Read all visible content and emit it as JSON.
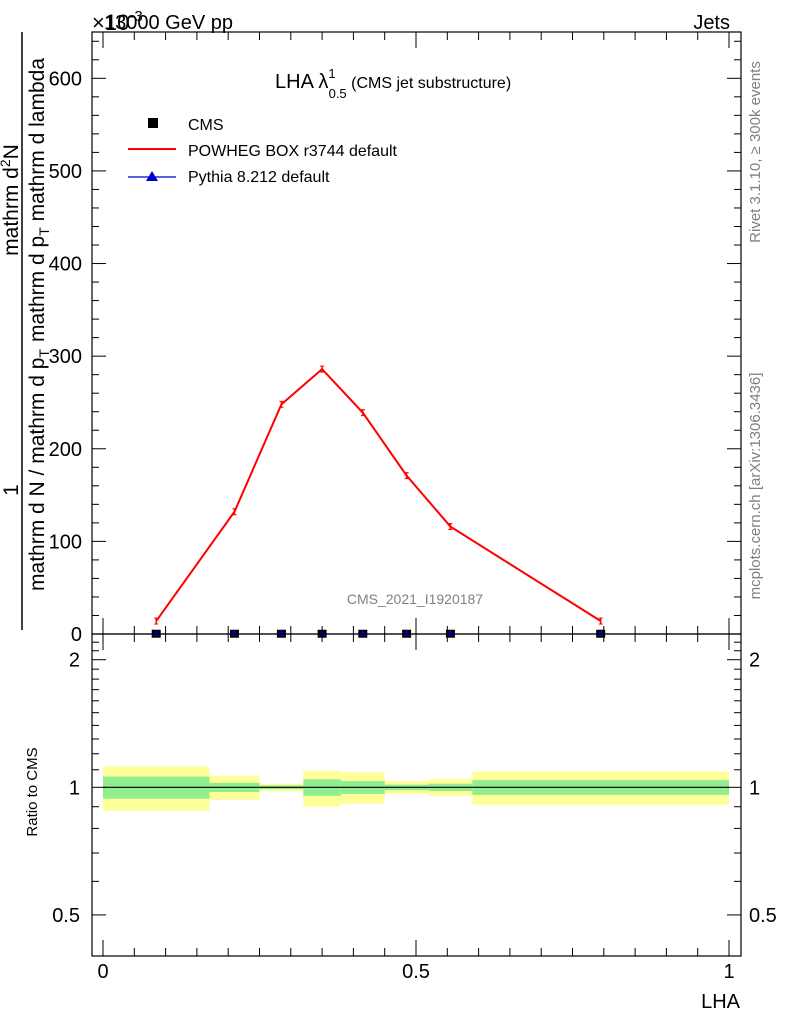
{
  "header": {
    "left": "13000 GeV pp",
    "right": "Jets",
    "exponent_label": "×10",
    "exponent_power": "-3"
  },
  "side_labels": {
    "rivet": "Rivet 3.1.10, ≥ 300k events",
    "mcplots": "mcplots.cern.ch [arXiv:1306.3436]"
  },
  "plot_title": {
    "main": "LHA λ",
    "sup": "1",
    "sub": "0.5",
    "suffix": " (CMS jet substructure)"
  },
  "watermark": "CMS_2021_I1920187",
  "ylabel_main": {
    "numerator": "1",
    "denominator": "mathrm d N / mathrm d p",
    "den_sub": "T",
    "right_num": "mathrm d",
    "right_num_sup": "2",
    "right_num_tail": "N",
    "right_den": "mathrm d p",
    "right_den_sub": "T",
    "right_den_tail": " mathrm d lambda"
  },
  "ylabel_ratio": "Ratio to CMS",
  "xlabel": "LHA",
  "legend": [
    {
      "label": "CMS",
      "marker": "square",
      "color": "#000000"
    },
    {
      "label": "POWHEG BOX r3744 default",
      "marker": "line",
      "color": "#ff0000"
    },
    {
      "label": "Pythia 8.212 default",
      "marker": "triangle",
      "color": "#0000cc"
    }
  ],
  "chart_data": {
    "type": "line",
    "x_ticks": [
      "0",
      "0.5",
      "1"
    ],
    "main": {
      "ylim": [
        0,
        650
      ],
      "y_ticks": [
        "0",
        "100",
        "200",
        "300",
        "400",
        "500",
        "600"
      ],
      "series": [
        {
          "name": "POWHEG BOX r3744 default",
          "color": "#ff0000",
          "x": [
            0.085,
            0.21,
            0.285,
            0.35,
            0.415,
            0.485,
            0.555,
            0.795
          ],
          "y": [
            14,
            132,
            248,
            286,
            239,
            171,
            116,
            14
          ]
        },
        {
          "name": "CMS",
          "color": "#000000",
          "x": [
            0.085,
            0.21,
            0.285,
            0.35,
            0.415,
            0.485,
            0.555,
            0.795
          ],
          "y": [
            0.3,
            0.3,
            0.3,
            0.3,
            0.3,
            0.3,
            0.3,
            0.3
          ]
        },
        {
          "name": "Pythia 8.212 default",
          "color": "#0000cc",
          "x": [
            0.085,
            0.21,
            0.285,
            0.35,
            0.415,
            0.485,
            0.555,
            0.795
          ],
          "y": [
            0.3,
            0.3,
            0.3,
            0.3,
            0.3,
            0.3,
            0.3,
            0.3
          ]
        }
      ]
    },
    "ratio": {
      "ylim": [
        0.4,
        2.3
      ],
      "log_scale": true,
      "y_ticks": [
        "0.5",
        "1",
        "2"
      ],
      "reference": 1,
      "bands": [
        {
          "x0": 0.0,
          "x1": 0.17,
          "inner": [
            0.94,
            1.06
          ],
          "outer": [
            0.88,
            1.12
          ]
        },
        {
          "x0": 0.17,
          "x1": 0.25,
          "inner": [
            0.975,
            1.025
          ],
          "outer": [
            0.935,
            1.065
          ]
        },
        {
          "x0": 0.25,
          "x1": 0.32,
          "inner": [
            0.99,
            1.01
          ],
          "outer": [
            0.98,
            1.02
          ]
        },
        {
          "x0": 0.32,
          "x1": 0.38,
          "inner": [
            0.955,
            1.045
          ],
          "outer": [
            0.9,
            1.095
          ]
        },
        {
          "x0": 0.38,
          "x1": 0.45,
          "inner": [
            0.965,
            1.035
          ],
          "outer": [
            0.915,
            1.085
          ]
        },
        {
          "x0": 0.45,
          "x1": 0.52,
          "inner": [
            0.985,
            1.015
          ],
          "outer": [
            0.965,
            1.035
          ]
        },
        {
          "x0": 0.52,
          "x1": 0.59,
          "inner": [
            0.98,
            1.02
          ],
          "outer": [
            0.955,
            1.045
          ]
        },
        {
          "x0": 0.59,
          "x1": 1.0,
          "inner": [
            0.96,
            1.04
          ],
          "outer": [
            0.91,
            1.09
          ]
        }
      ]
    }
  }
}
